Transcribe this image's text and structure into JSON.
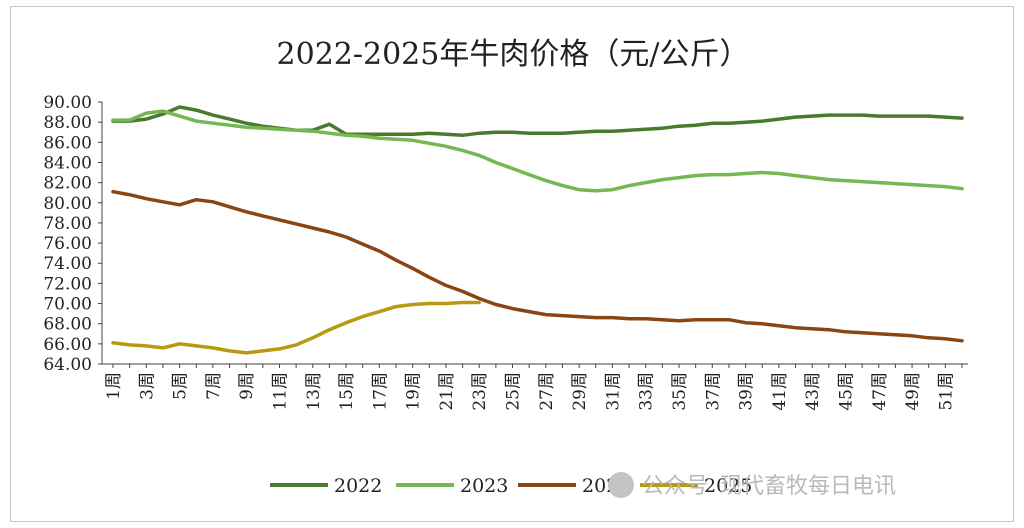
{
  "chart_data": {
    "type": "line",
    "title": "2022-2025年牛肉价格（元/公斤）",
    "xlabel": "",
    "ylabel": "",
    "ylim": [
      64,
      90
    ],
    "y_ticks": [
      "64.00",
      "66.00",
      "68.00",
      "70.00",
      "72.00",
      "74.00",
      "76.00",
      "78.00",
      "80.00",
      "82.00",
      "84.00",
      "86.00",
      "88.00",
      "90.00"
    ],
    "x_tick_labels": [
      "1周",
      "3周",
      "5周",
      "7周",
      "9周",
      "11周",
      "13周",
      "15周",
      "17周",
      "19周",
      "21周",
      "23周",
      "25周",
      "27周",
      "29周",
      "31周",
      "33周",
      "35周",
      "37周",
      "39周",
      "41周",
      "43周",
      "45周",
      "47周",
      "49周",
      "51周"
    ],
    "weeks": 52,
    "legend_position": "bottom",
    "grid": false,
    "series": [
      {
        "name": "2022",
        "color": "#4a7a2e",
        "values": [
          88.1,
          88.1,
          88.3,
          88.8,
          89.5,
          89.2,
          88.7,
          88.3,
          87.9,
          87.6,
          87.4,
          87.2,
          87.2,
          87.8,
          86.8,
          86.8,
          86.8,
          86.8,
          86.8,
          86.9,
          86.8,
          86.7,
          86.9,
          87.0,
          87.0,
          86.9,
          86.9,
          86.9,
          87.0,
          87.1,
          87.1,
          87.2,
          87.3,
          87.4,
          87.6,
          87.7,
          87.9,
          87.9,
          88.0,
          88.1,
          88.3,
          88.5,
          88.6,
          88.7,
          88.7,
          88.7,
          88.6,
          88.6,
          88.6,
          88.6,
          88.5,
          88.4
        ]
      },
      {
        "name": "2023",
        "color": "#74b852",
        "values": [
          88.2,
          88.2,
          88.9,
          89.1,
          88.6,
          88.1,
          87.9,
          87.7,
          87.5,
          87.4,
          87.3,
          87.2,
          87.1,
          86.9,
          86.7,
          86.6,
          86.4,
          86.3,
          86.2,
          85.9,
          85.6,
          85.2,
          84.7,
          84.0,
          83.4,
          82.8,
          82.2,
          81.7,
          81.3,
          81.2,
          81.3,
          81.7,
          82.0,
          82.3,
          82.5,
          82.7,
          82.8,
          82.8,
          82.9,
          83.0,
          82.9,
          82.7,
          82.5,
          82.3,
          82.2,
          82.1,
          82.0,
          81.9,
          81.8,
          81.7,
          81.6,
          81.4
        ]
      },
      {
        "name": "2024",
        "color": "#8b4513",
        "values": [
          81.1,
          80.8,
          80.4,
          80.1,
          79.8,
          80.3,
          80.1,
          79.6,
          79.1,
          78.7,
          78.3,
          77.9,
          77.5,
          77.1,
          76.6,
          75.9,
          75.2,
          74.3,
          73.5,
          72.6,
          71.8,
          71.2,
          70.5,
          69.9,
          69.5,
          69.2,
          68.9,
          68.8,
          68.7,
          68.6,
          68.6,
          68.5,
          68.5,
          68.4,
          68.3,
          68.4,
          68.4,
          68.4,
          68.1,
          68.0,
          67.8,
          67.6,
          67.5,
          67.4,
          67.2,
          67.1,
          67.0,
          66.9,
          66.8,
          66.6,
          66.5,
          66.3
        ]
      },
      {
        "name": "2025",
        "color": "#b9990f",
        "values": [
          66.1,
          65.9,
          65.8,
          65.6,
          66.0,
          65.8,
          65.6,
          65.3,
          65.1,
          65.3,
          65.5,
          65.9,
          66.6,
          67.4,
          68.1,
          68.7,
          69.2,
          69.7,
          69.9,
          70.0,
          70.0,
          70.1,
          70.1
        ]
      }
    ]
  },
  "watermark": {
    "platform": "公众号",
    "account": "现代畜牧每日电讯"
  }
}
